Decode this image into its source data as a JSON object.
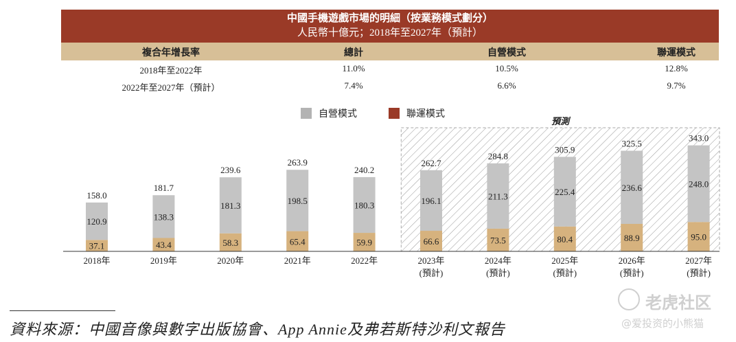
{
  "header": {
    "title": "中國手機遊戲市場的明細（按業務模式劃分）",
    "subtitle": "人民幣十億元；2018年至2027年（預計）"
  },
  "cagr_table": {
    "columns": [
      "複合年增長率",
      "總計",
      "自營模式",
      "聯運模式"
    ],
    "rows": [
      [
        "2018年至2022年",
        "11.0%",
        "10.5%",
        "12.8%"
      ],
      [
        "2022年至2027年（預計）",
        "7.4%",
        "6.6%",
        "9.7%"
      ]
    ]
  },
  "chart_data": {
    "type": "bar",
    "stacked": true,
    "categories": [
      "2018年",
      "2019年",
      "2020年",
      "2021年",
      "2022年",
      "2023年",
      "2024年",
      "2025年",
      "2026年",
      "2027年"
    ],
    "category_sublabels": [
      "",
      "",
      "",
      "",
      "",
      "(預計)",
      "(預計)",
      "(預計)",
      "(預計)",
      "(預計)"
    ],
    "series": [
      {
        "name": "聯運模式",
        "values": [
          37.1,
          43.4,
          58.3,
          65.4,
          59.9,
          66.6,
          73.5,
          80.4,
          88.9,
          95.0
        ],
        "color": "#d6b27e"
      },
      {
        "name": "自營模式",
        "values": [
          120.9,
          138.3,
          181.3,
          198.5,
          180.3,
          196.1,
          211.3,
          225.4,
          236.6,
          248.0
        ],
        "color": "#c4c4c4"
      }
    ],
    "totals": [
      158.0,
      181.7,
      239.6,
      263.9,
      240.2,
      262.7,
      284.8,
      305.9,
      325.5,
      343.0
    ],
    "legend": [
      {
        "name": "自營模式",
        "color": "#b3b3b3"
      },
      {
        "name": "聯運模式",
        "color": "#9a3a27"
      }
    ],
    "legend_position": "top",
    "forecast_label": "預測",
    "forecast_start_index": 5,
    "ylim": [
      0,
      400
    ],
    "grid": false
  },
  "footer": {
    "source": "資料來源：中國音像與數字出版協會、App Annie及弗若斯特沙利文報告"
  },
  "watermark": {
    "brand": "老虎社区",
    "user": "@爱投资的小熊猫"
  }
}
